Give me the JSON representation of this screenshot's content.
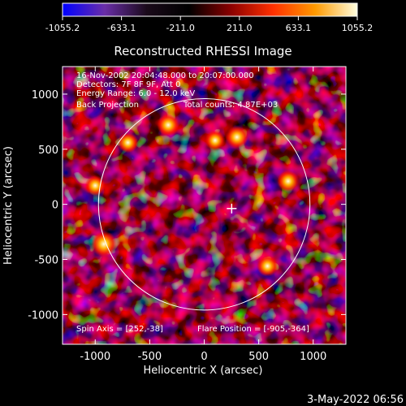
{
  "colorbar": {
    "ticks": [
      "-1055.2",
      "-633.1",
      "-211.0",
      "211.0",
      "633.1",
      "1055.2"
    ],
    "stops": [
      "#0000ff",
      "#6a2ea8",
      "#1a0a1a",
      "#000000",
      "#8b0000",
      "#ff3000",
      "#ff9a00",
      "#ffffe0"
    ]
  },
  "chart_data": {
    "type": "heatmap",
    "title": "Reconstructed RHESSI Image",
    "xlabel": "Heliocentric X (arcsec)",
    "ylabel": "Heliocentric Y (arcsec)",
    "xlim": [
      -1300,
      1300
    ],
    "ylim": [
      -1270,
      1250
    ],
    "xticks": [
      -1000,
      -500,
      0,
      500,
      1000
    ],
    "yticks": [
      -1000,
      -500,
      0,
      500,
      1000
    ],
    "value_range": [
      -1055.2,
      1055.2
    ],
    "solar_limb": {
      "center": [
        0,
        0
      ],
      "radius_arcsec": 970
    },
    "marker": {
      "x": 252,
      "y": -38,
      "symbol": "+"
    },
    "annotations_top": [
      "16-Nov-2002 20:04:48.000 to 20:07:00.000",
      "Detectors: 7F 8F 9F, Att 0",
      "Energy Range: 6.0 - 12.0 keV"
    ],
    "annotation_method": "Back Projection",
    "annotation_counts": "Total counts: 4.87E+03",
    "annotation_spin": "Spin Axis = [252,-38]",
    "annotation_flare": "Flare Position = [-905,-364]",
    "bright_spots": [
      {
        "x": -920,
        "y": -360,
        "value": 1055.2
      },
      {
        "x": 300,
        "y": 610,
        "value": 850
      },
      {
        "x": -330,
        "y": 720,
        "value": 820
      },
      {
        "x": 770,
        "y": 210,
        "value": 800
      },
      {
        "x": 580,
        "y": -560,
        "value": 760
      },
      {
        "x": -700,
        "y": 560,
        "value": 720
      },
      {
        "x": 100,
        "y": 580,
        "value": 700
      },
      {
        "x": -1000,
        "y": 170,
        "value": 690
      }
    ]
  },
  "timestamp": "3-May-2022 06:56"
}
